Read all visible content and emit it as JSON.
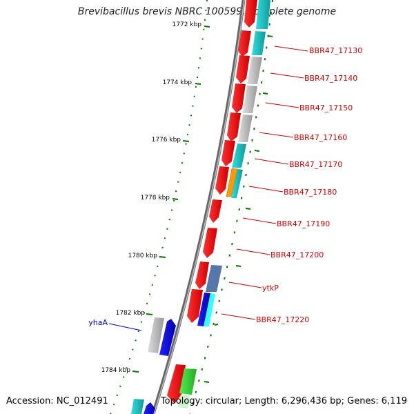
{
  "header": {
    "title": "Brevibacillus brevis NBRC 100599, complete genome"
  },
  "footer": {
    "accession": "Accession: NC_012491",
    "summary": "Topology: circular; Length: 6,296,436 bp; Genes: 6,119"
  },
  "scale": {
    "ticks": [
      "1772 kbp",
      "1774 kbp",
      "1776 kbp",
      "1778 kbp",
      "1780 kbp",
      "1782 kbp",
      "1784 kbp"
    ]
  },
  "genes": {
    "labels": [
      "BBR47_17130",
      "BBR47_17140",
      "BBR47_17150",
      "BBR47_17160",
      "BBR47_17170",
      "BBR47_17180",
      "BBR47_17190",
      "BBR47_17200",
      "ytkP",
      "BBR47_17220",
      "yhaA"
    ]
  },
  "colors": {
    "forward_cds": "#ff0000",
    "similar_cyan": "#22cccc",
    "similar_gray": "#bbbbbb",
    "blue": "#0000ee",
    "steel": "#5577aa",
    "orange": "#ff9900",
    "green": "#33cc33",
    "backbone": "#777777",
    "tick": "#007700"
  }
}
